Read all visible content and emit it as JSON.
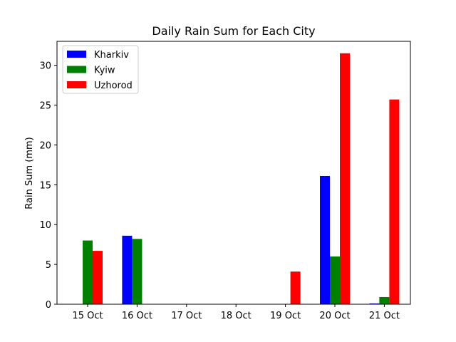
{
  "chart_data": {
    "type": "bar",
    "title": "Daily Rain Sum for Each City",
    "xlabel": "",
    "ylabel": "Rain Sum (mm)",
    "categories": [
      "15 Oct",
      "16 Oct",
      "17 Oct",
      "18 Oct",
      "19 Oct",
      "20 Oct",
      "21 Oct"
    ],
    "series": [
      {
        "name": "Kharkiv",
        "color": "#0000ff",
        "values": [
          0,
          8.6,
          0,
          0,
          0,
          16.1,
          0.1
        ]
      },
      {
        "name": "Kyiw",
        "color": "#008000",
        "values": [
          8.0,
          8.2,
          0,
          0,
          0,
          6.0,
          0.9
        ]
      },
      {
        "name": "Uzhorod",
        "color": "#ff0000",
        "values": [
          6.7,
          0,
          0,
          0,
          4.1,
          31.5,
          25.7
        ]
      }
    ],
    "ylim": [
      0,
      33
    ],
    "yticks": [
      0,
      5,
      10,
      15,
      20,
      25,
      30
    ],
    "grid": false,
    "legend_position": "top-left"
  }
}
